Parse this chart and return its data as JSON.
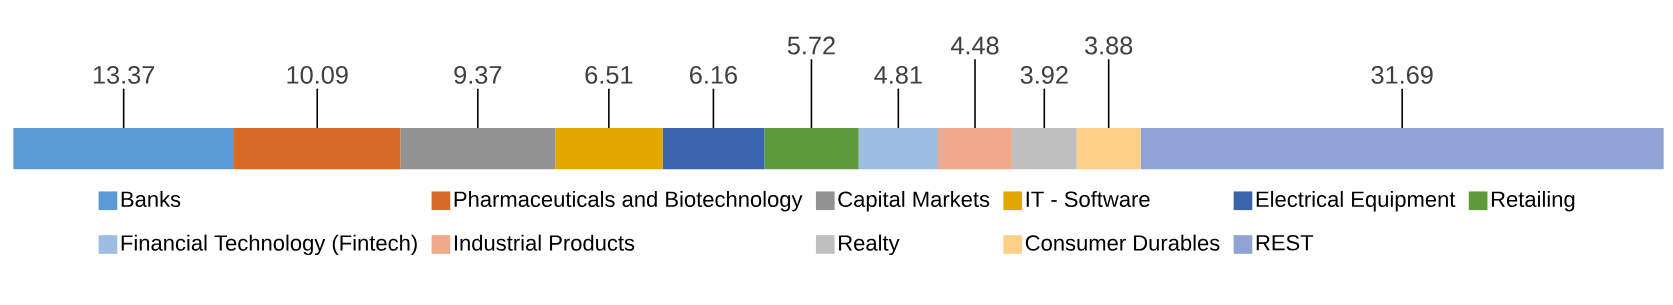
{
  "chart_data": {
    "type": "bar",
    "orientation": "horizontal",
    "stacked": true,
    "categories": [
      null
    ],
    "xlim": [
      0,
      100
    ],
    "data_labels": true,
    "legend": "bottom",
    "series": [
      {
        "name": "Banks",
        "color": "#5b9bd5",
        "values": [
          13.37
        ]
      },
      {
        "name": "Pharmaceuticals and Biotechnology",
        "color": "#d46b28",
        "values": [
          10.09
        ]
      },
      {
        "name": "Capital Markets",
        "color": "#929292",
        "values": [
          9.37
        ]
      },
      {
        "name": "IT - Software",
        "color": "#e3a800",
        "values": [
          6.51
        ]
      },
      {
        "name": "Electrical Equipment",
        "color": "#3a64ad",
        "values": [
          6.16
        ]
      },
      {
        "name": "Retailing",
        "color": "#5e9a3c",
        "values": [
          5.72
        ]
      },
      {
        "name": "Financial Technology (Fintech)",
        "color": "#9dbde3",
        "values": [
          4.81
        ]
      },
      {
        "name": "Industrial Products",
        "color": "#f0a98a",
        "values": [
          4.48
        ]
      },
      {
        "name": "Realty",
        "color": "#bfbfbf",
        "values": [
          3.92
        ]
      },
      {
        "name": "Consumer Durables",
        "color": "#fdd088",
        "values": [
          3.88
        ]
      },
      {
        "name": "REST",
        "color": "#8fa4d5",
        "values": [
          31.69
        ]
      }
    ]
  }
}
